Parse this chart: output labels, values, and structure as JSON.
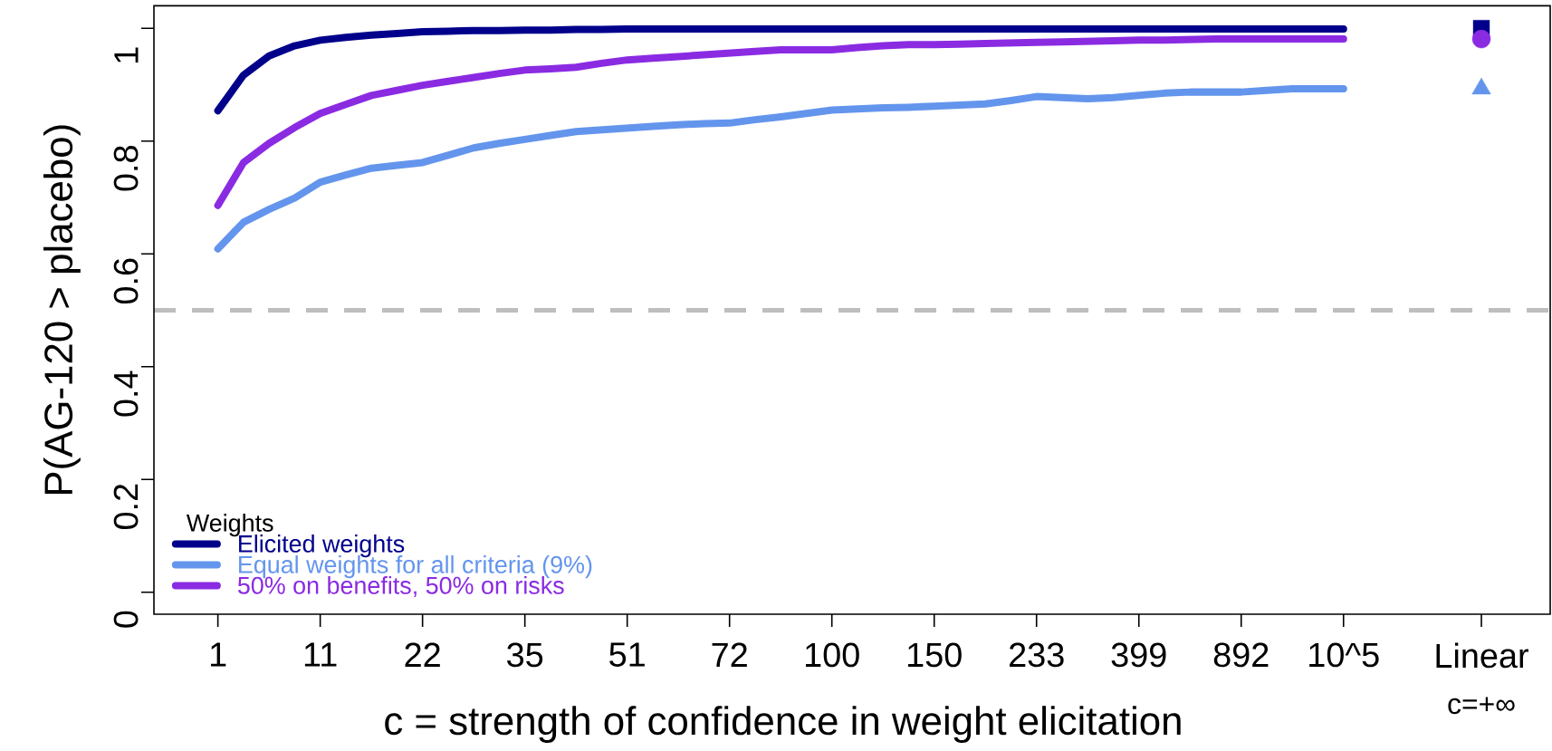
{
  "chart_data": [
    {
      "type": "line",
      "xlabel": "c = strength of confidence in weight elicitation",
      "ylabel": "P(AG-120 > placebo)",
      "legend_title": "Weights",
      "legend": "bottom left",
      "categories": [
        "1",
        null,
        null,
        null,
        "11",
        null,
        null,
        null,
        "22",
        null,
        null,
        null,
        "35",
        null,
        null,
        null,
        "51",
        null,
        null,
        null,
        "72",
        null,
        null,
        null,
        "100",
        null,
        null,
        null,
        "150",
        null,
        null,
        null,
        "233",
        null,
        null,
        null,
        "399",
        null,
        null,
        null,
        "892",
        null,
        null,
        null,
        "10^5"
      ],
      "ylim": [
        -0.039,
        1.04
      ],
      "yticks": [
        0,
        0.2,
        0.4,
        0.6,
        0.8,
        1
      ],
      "ref_lines": [
        {
          "axis": "y",
          "value": 0.5,
          "color": "#bebebe",
          "line_style": "dashed"
        }
      ],
      "series": [
        {
          "name": "Elicited weights",
          "color": "#00008b",
          "values": [
            0.854,
            0.917,
            0.951,
            0.969,
            0.979,
            0.984,
            0.988,
            0.991,
            0.994,
            0.995,
            0.996,
            0.996,
            0.997,
            0.997,
            0.998,
            0.998,
            0.999,
            0.999,
            0.999,
            0.999,
            0.999,
            0.999,
            0.999,
            0.999,
            0.999,
            0.999,
            0.999,
            0.999,
            0.999,
            0.999,
            0.999,
            0.999,
            0.999,
            0.999,
            0.999,
            0.999,
            0.999,
            0.999,
            0.999,
            0.999,
            0.999,
            0.999,
            0.999,
            0.999,
            0.999
          ]
        },
        {
          "name": "Equal weights for all criteria (9%)",
          "color": "#6495ed",
          "values": [
            0.609,
            0.656,
            0.679,
            0.699,
            0.727,
            0.74,
            0.752,
            0.757,
            0.762,
            0.775,
            0.788,
            0.796,
            0.803,
            0.81,
            0.817,
            0.82,
            0.823,
            0.826,
            0.829,
            0.831,
            0.832,
            0.838,
            0.843,
            0.849,
            0.855,
            0.857,
            0.859,
            0.86,
            0.862,
            0.864,
            0.866,
            0.872,
            0.879,
            0.877,
            0.875,
            0.877,
            0.881,
            0.885,
            0.887,
            0.887,
            0.887,
            0.89,
            0.893,
            0.893,
            0.893
          ]
        },
        {
          "name": "50% on benefits, 50% on risks",
          "color": "#8a2be2",
          "values": [
            0.686,
            0.762,
            0.796,
            0.824,
            0.849,
            0.865,
            0.881,
            0.89,
            0.899,
            0.906,
            0.913,
            0.92,
            0.926,
            0.928,
            0.931,
            0.938,
            0.944,
            0.947,
            0.95,
            0.953,
            0.956,
            0.959,
            0.962,
            0.962,
            0.962,
            0.966,
            0.969,
            0.971,
            0.971,
            0.972,
            0.973,
            0.974,
            0.975,
            0.976,
            0.977,
            0.978,
            0.979,
            0.979,
            0.98,
            0.981,
            0.981,
            0.981,
            0.981,
            0.981,
            0.981
          ]
        }
      ]
    },
    {
      "type": "scatter",
      "categories": [
        "Linear"
      ],
      "ylim": [
        -0.039,
        1.04
      ],
      "tick_labels": "x",
      "annotations": [
        "c=+∞"
      ],
      "ref_lines": [
        {
          "axis": "y",
          "value": 0.5,
          "color": "#bebebe",
          "line_style": "dashed"
        }
      ],
      "series": [
        {
          "marker": "square",
          "color": "#00008b",
          "values": [
            1.0
          ]
        },
        {
          "marker": "circle",
          "color": "#8a2be2",
          "values": [
            0.981
          ]
        },
        {
          "marker": "triangle",
          "color": "#6495ed",
          "values": [
            0.893
          ]
        }
      ]
    }
  ]
}
